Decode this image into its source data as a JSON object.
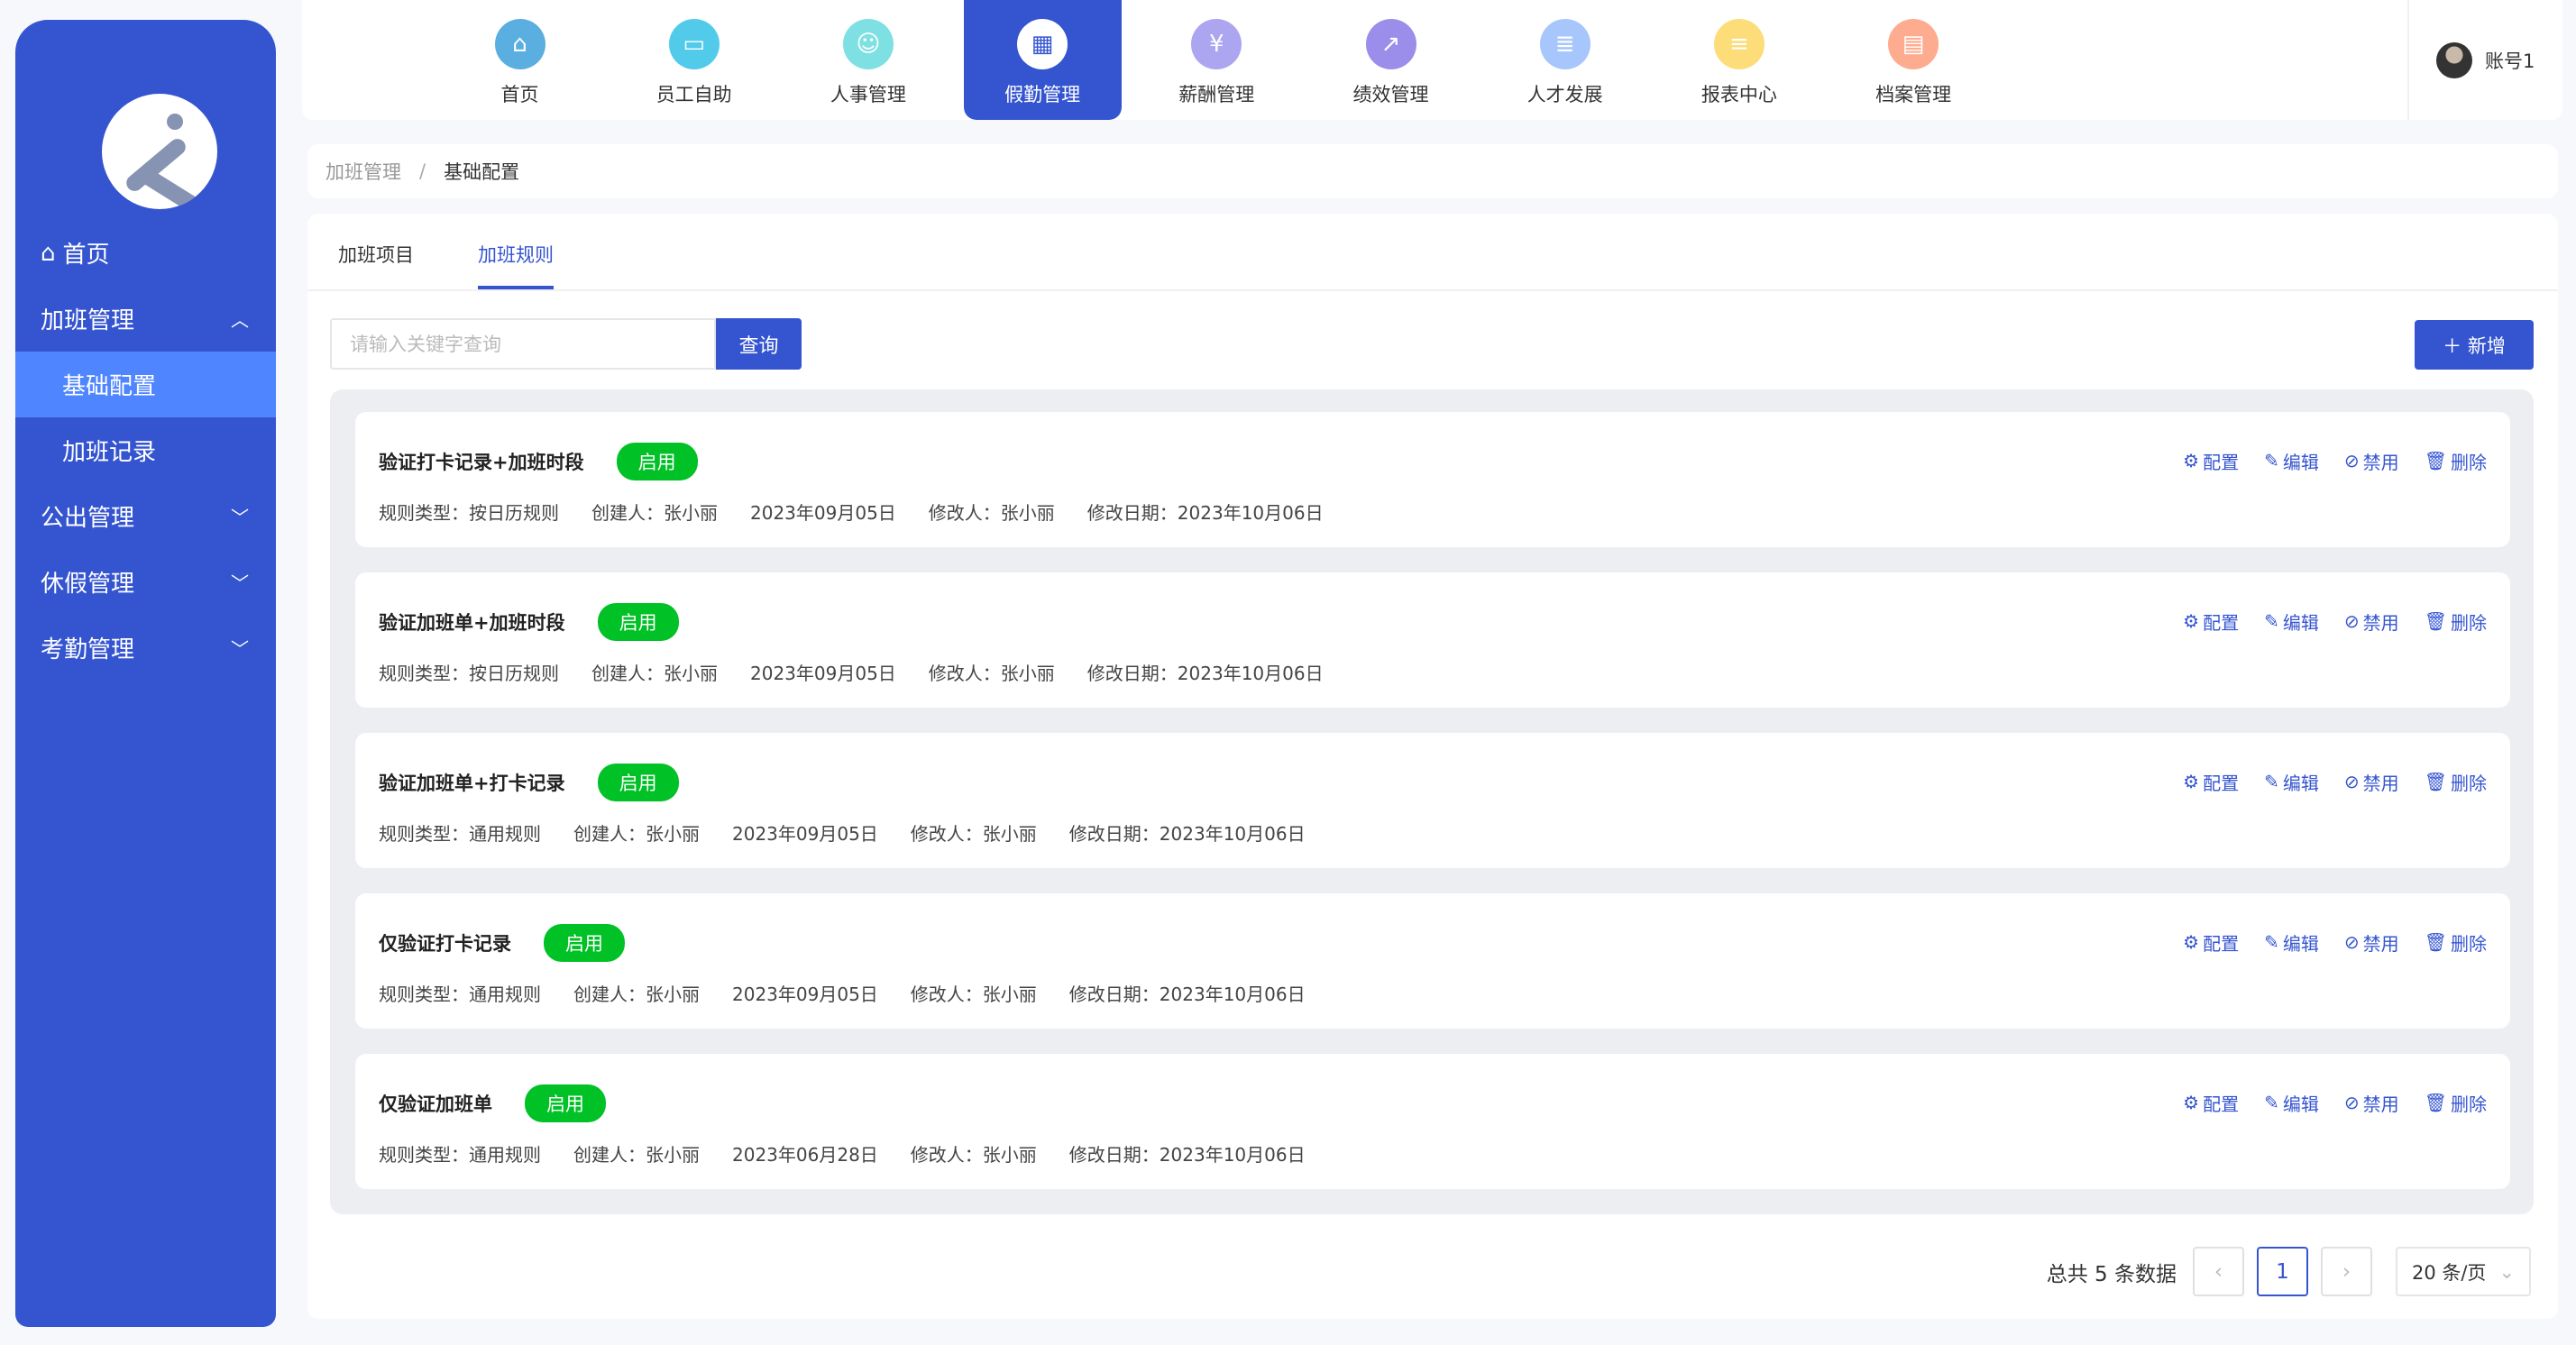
{
  "sidebar": {
    "items": [
      {
        "label": "首页",
        "icon": "home-icon",
        "type": "top"
      },
      {
        "label": "加班管理",
        "chevron": "up",
        "type": "group"
      },
      {
        "label": "基础配置",
        "type": "sub",
        "active": true
      },
      {
        "label": "加班记录",
        "type": "sub"
      },
      {
        "label": "公出管理",
        "chevron": "down",
        "type": "group"
      },
      {
        "label": "休假管理",
        "chevron": "down",
        "type": "group"
      },
      {
        "label": "考勤管理",
        "chevron": "down",
        "type": "group"
      }
    ]
  },
  "topnav": {
    "items": [
      {
        "label": "首页",
        "icon": "home-icon",
        "color": "#5aaee0"
      },
      {
        "label": "员工自助",
        "icon": "monitor-icon",
        "color": "#52cbea"
      },
      {
        "label": "人事管理",
        "icon": "person-icon",
        "color": "#7ee0e2"
      },
      {
        "label": "假勤管理",
        "icon": "calendar-icon",
        "color": "#ffffff",
        "active": true
      },
      {
        "label": "薪酬管理",
        "icon": "yen-icon",
        "color": "#aca6f1"
      },
      {
        "label": "绩效管理",
        "icon": "chart-icon",
        "color": "#9a8eea"
      },
      {
        "label": "人才发展",
        "icon": "document-icon",
        "color": "#a6c6fc"
      },
      {
        "label": "报表中心",
        "icon": "report-icon",
        "color": "#fcdd7a"
      },
      {
        "label": "档案管理",
        "icon": "archive-icon",
        "color": "#fdac8f"
      }
    ],
    "account": "账号1"
  },
  "breadcrumb": {
    "parent": "加班管理",
    "separator": "/",
    "current": "基础配置"
  },
  "tabs": [
    {
      "label": "加班项目"
    },
    {
      "label": "加班规则",
      "active": true
    }
  ],
  "search": {
    "placeholder": "请输入关键字查询",
    "value": "",
    "button": "查询"
  },
  "add_button": "新增",
  "actions": {
    "config": "配置",
    "edit": "编辑",
    "disable": "禁用",
    "delete": "删除"
  },
  "rules": [
    {
      "name": "验证打卡记录+加班时段",
      "status": "启用",
      "type": "规则类型：按日历规则",
      "creator": "创建人：张小丽",
      "created": "2023年09月05日",
      "modifier": "修改人：张小丽",
      "modified": "修改日期：2023年10月06日"
    },
    {
      "name": "验证加班单+加班时段",
      "status": "启用",
      "type": "规则类型：按日历规则",
      "creator": "创建人：张小丽",
      "created": "2023年09月05日",
      "modifier": "修改人：张小丽",
      "modified": "修改日期：2023年10月06日"
    },
    {
      "name": "验证加班单+打卡记录",
      "status": "启用",
      "type": "规则类型：通用规则",
      "creator": "创建人：张小丽",
      "created": "2023年09月05日",
      "modifier": "修改人：张小丽",
      "modified": "修改日期：2023年10月06日"
    },
    {
      "name": "仅验证打卡记录",
      "status": "启用",
      "type": "规则类型：通用规则",
      "creator": "创建人：张小丽",
      "created": "2023年09月05日",
      "modifier": "修改人：张小丽",
      "modified": "修改日期：2023年10月06日"
    },
    {
      "name": "仅验证加班单",
      "status": "启用",
      "type": "规则类型：通用规则",
      "creator": "创建人：张小丽",
      "created": "2023年06月28日",
      "modifier": "修改人：张小丽",
      "modified": "修改日期：2023年10月06日"
    }
  ],
  "pagination": {
    "total": "总共 5 条数据",
    "current": "1",
    "page_size": "20 条/页"
  },
  "colors": {
    "primary": "#3555d0",
    "active_sub": "#4f86ff",
    "status_green": "#00c126"
  }
}
